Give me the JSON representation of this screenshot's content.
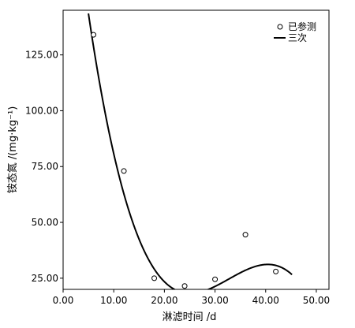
{
  "chart_data": {
    "type": "scatter",
    "xlabel": "淋滤时间 /d",
    "ylabel": "铵态氮 /(mg·kg⁻¹)",
    "xlim": [
      0,
      52.5
    ],
    "ylim": [
      20,
      145
    ],
    "x_ticks": [
      "0.00",
      "10.00",
      "20.00",
      "30.00",
      "40.00",
      "50.00"
    ],
    "y_ticks": [
      "25.00",
      "50.00",
      "75.00",
      "100.00",
      "125.00"
    ],
    "grid": false,
    "legend_position": "top-right",
    "series": [
      {
        "name": "已参测",
        "kind": "scatter",
        "x": [
          6,
          12,
          18,
          24,
          30,
          36,
          42
        ],
        "y": [
          134,
          73,
          25,
          21.5,
          24.5,
          44.5,
          28
        ]
      },
      {
        "name": "三次",
        "kind": "line",
        "curve": "cubic",
        "coefficients": [
          236.4,
          -21.93,
          0.7082,
          -0.007206
        ],
        "x_range": [
          5,
          45.2
        ]
      }
    ]
  }
}
